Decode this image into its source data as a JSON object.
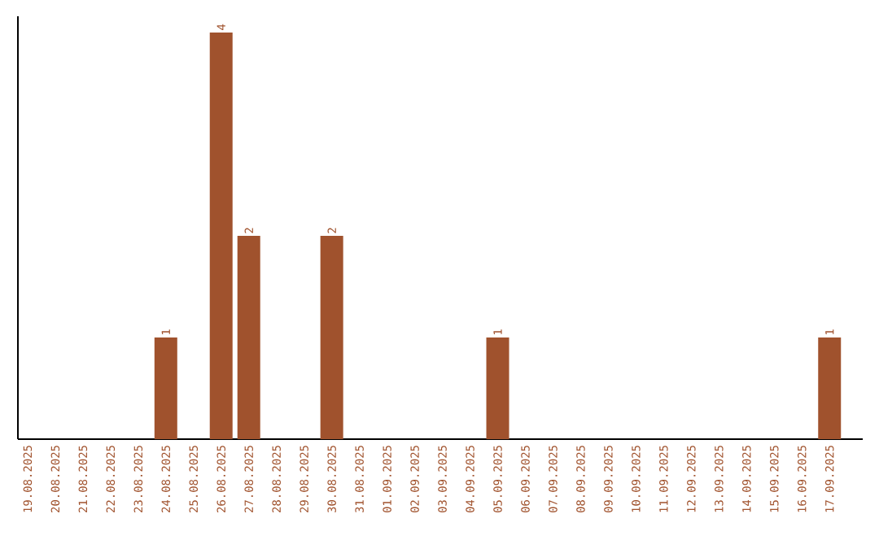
{
  "chart_data": {
    "type": "bar",
    "categories": [
      "19.08.2025",
      "20.08.2025",
      "21.08.2025",
      "22.08.2025",
      "23.08.2025",
      "24.08.2025",
      "25.08.2025",
      "26.08.2025",
      "27.08.2025",
      "28.08.2025",
      "29.08.2025",
      "30.08.2025",
      "31.08.2025",
      "01.09.2025",
      "02.09.2025",
      "03.09.2025",
      "04.09.2025",
      "05.09.2025",
      "06.09.2025",
      "07.09.2025",
      "08.09.2025",
      "09.09.2025",
      "10.09.2025",
      "11.09.2025",
      "12.09.2025",
      "13.09.2025",
      "14.09.2025",
      "15.09.2025",
      "16.09.2025",
      "17.09.2025"
    ],
    "values": [
      0,
      0,
      0,
      0,
      0,
      1,
      0,
      4,
      2,
      0,
      0,
      2,
      0,
      0,
      0,
      0,
      0,
      1,
      0,
      0,
      0,
      0,
      0,
      0,
      0,
      0,
      0,
      0,
      0,
      1
    ],
    "value_labels": [
      null,
      null,
      null,
      null,
      null,
      "1",
      null,
      "4",
      "2",
      null,
      null,
      "2",
      null,
      null,
      null,
      null,
      null,
      "1",
      null,
      null,
      null,
      null,
      null,
      null,
      null,
      null,
      null,
      null,
      null,
      "1"
    ],
    "color": "#a0522d"
  }
}
